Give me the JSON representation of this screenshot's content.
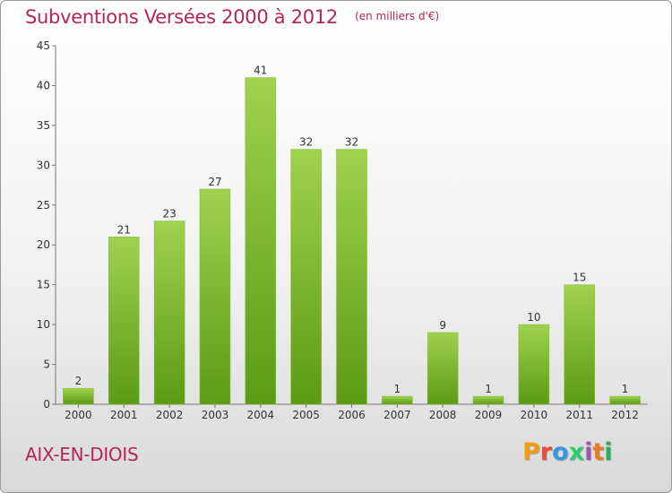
{
  "header": {
    "title": "Subventions Versées 2000 à 2012",
    "unit": "(en milliers d'€)"
  },
  "footer": {
    "commune": "AIX-EN-DIOIS",
    "logo_text": "Proxiti",
    "logo_colors": [
      "#f39c12",
      "#e74c3c",
      "#3498db",
      "#2ecc71",
      "#9b59b6",
      "#e67e22",
      "#27ae60"
    ]
  },
  "colors": {
    "bar_top": "#9fd24e",
    "bar_bottom": "#5c9a16",
    "accent": "#b5245a"
  },
  "chart_data": {
    "type": "bar",
    "categories": [
      "2000",
      "2001",
      "2002",
      "2003",
      "2004",
      "2005",
      "2006",
      "2007",
      "2008",
      "2009",
      "2010",
      "2011",
      "2012"
    ],
    "values": [
      2,
      21,
      23,
      27,
      41,
      32,
      32,
      1,
      9,
      1,
      10,
      15,
      1
    ],
    "title": "Subventions Versées 2000 à 2012",
    "xlabel": "",
    "ylabel": "",
    "ylim": [
      0,
      45
    ],
    "yticks": [
      0,
      5,
      10,
      15,
      20,
      25,
      30,
      35,
      40,
      45
    ],
    "grid": false,
    "legend": "none"
  }
}
